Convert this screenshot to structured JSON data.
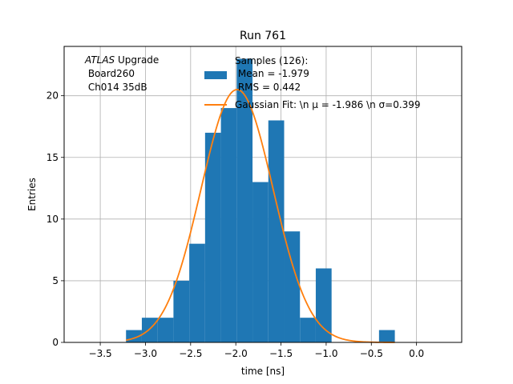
{
  "chart_data": {
    "type": "bar",
    "title": "Run 761",
    "xlabel": "time [ns]",
    "ylabel": "Entries",
    "xlim": [
      -3.9,
      0.5
    ],
    "ylim": [
      0,
      24
    ],
    "grid": true,
    "x_ticks": [
      -3.5,
      -3.0,
      -2.5,
      -2.0,
      -1.5,
      -1.0,
      -0.5,
      0.0
    ],
    "x_tick_labels": [
      "−3.5",
      "−3.0",
      "−2.5",
      "−2.0",
      "−1.5",
      "−1.0",
      "−0.5",
      "0.0"
    ],
    "y_ticks": [
      0,
      5,
      10,
      15,
      20
    ],
    "y_tick_labels": [
      "0",
      "5",
      "10",
      "15",
      "20"
    ],
    "annotation": {
      "line1_italic": "ATLAS",
      "line1_rest": " Upgrade",
      "line2": " Board260",
      "line3": " Ch014 35dB"
    },
    "histogram": {
      "name": "Samples (126):",
      "name_line2": " Mean = -1.979",
      "name_line3": " RMS = 0.442",
      "color": "#1f77b4",
      "bin_edges": [
        -3.215,
        -3.04,
        -2.865,
        -2.69,
        -2.515,
        -2.34,
        -2.165,
        -1.99,
        -1.815,
        -1.64,
        -1.465,
        -1.29,
        -1.115,
        -0.94,
        -0.765,
        -0.59,
        -0.415,
        -0.24
      ],
      "counts": [
        1,
        2,
        2,
        5,
        8,
        17,
        19,
        23,
        13,
        18,
        9,
        2,
        6,
        0,
        0,
        0,
        1
      ]
    },
    "fit": {
      "name": "Gaussian Fit: \\n μ = -1.986 \\n σ=0.399",
      "color": "#ff7f0e",
      "mu": -1.986,
      "sigma": 0.399,
      "amplitude": 20.5,
      "x_range": [
        -3.215,
        -0.24
      ]
    }
  }
}
